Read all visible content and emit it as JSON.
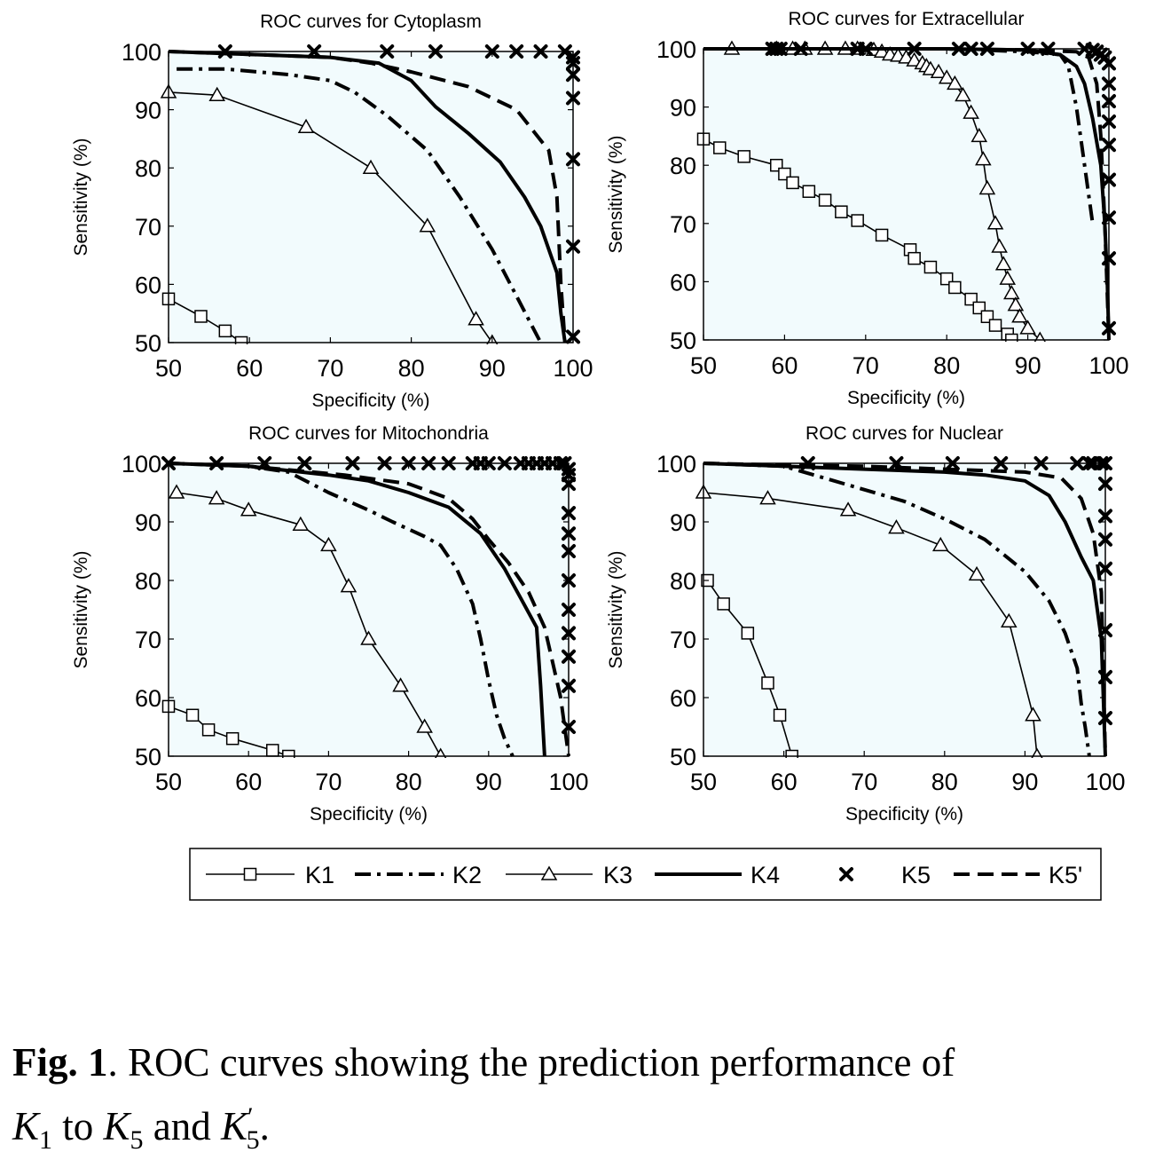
{
  "figure": {
    "caption": {
      "label": "Fig. 1",
      "text_1": ". ROC curves showing the prediction performance of",
      "k1_base": "K",
      "k1_sub": "1",
      "to": " to ",
      "k5_base": "K",
      "k5_sub": "5",
      "and": " and ",
      "k5p_base": "K",
      "k5p_sub": "5",
      "k5p_sup": "′",
      "end": "."
    }
  },
  "chart_data": [
    {
      "type": "line",
      "title": "ROC curves for Cytoplasm",
      "xlabel": "Specificity (%)",
      "ylabel": "Sensitivity (%)",
      "xlim": [
        50,
        100
      ],
      "ylim": [
        50,
        100
      ],
      "xticks": [
        50,
        60,
        70,
        80,
        90,
        100
      ],
      "yticks": [
        50,
        60,
        70,
        80,
        90,
        100
      ],
      "series": [
        {
          "name": "K1",
          "x": [
            50,
            54,
            57,
            59
          ],
          "y": [
            57.5,
            54.5,
            52,
            50
          ]
        },
        {
          "name": "K2",
          "x": [
            51,
            57,
            65,
            70,
            73,
            77,
            82,
            86,
            90,
            93,
            96
          ],
          "y": [
            97,
            97,
            96,
            95,
            93,
            89,
            83,
            75,
            66,
            58,
            50
          ]
        },
        {
          "name": "K3",
          "x": [
            50,
            56,
            67,
            75,
            82,
            88,
            90
          ],
          "y": [
            93,
            92.5,
            87,
            80,
            70,
            54,
            50
          ]
        },
        {
          "name": "K4",
          "x": [
            50,
            60,
            70,
            76,
            80,
            83,
            87,
            91,
            94,
            96,
            98,
            98.5,
            99
          ],
          "y": [
            100,
            99.5,
            99,
            98,
            95,
            90.5,
            86,
            81,
            75,
            70,
            62,
            55,
            50
          ]
        },
        {
          "name": "K5",
          "x": [
            57,
            68,
            77,
            83,
            90,
            93,
            96,
            99,
            100,
            100,
            100,
            100,
            100,
            100,
            100
          ],
          "y": [
            100,
            100,
            100,
            100,
            100,
            100,
            100,
            100,
            98,
            96,
            92,
            81.5,
            66.5,
            51,
            99
          ]
        },
        {
          "name": "K5'",
          "x": [
            50,
            60,
            70,
            75,
            80,
            87,
            93,
            97,
            98,
            98.5,
            99
          ],
          "y": [
            100,
            99.5,
            99,
            98,
            96.5,
            94,
            90,
            83,
            75,
            60,
            50
          ]
        }
      ]
    },
    {
      "type": "line",
      "title": "ROC curves for Extracellular",
      "xlabel": "Specificity (%)",
      "ylabel": "Sensitivity (%)",
      "xlim": [
        50,
        100
      ],
      "ylim": [
        50,
        100
      ],
      "xticks": [
        50,
        60,
        70,
        80,
        90,
        100
      ],
      "yticks": [
        50,
        60,
        70,
        80,
        90,
        100
      ],
      "series": [
        {
          "name": "K1",
          "x": [
            50,
            52,
            55,
            59,
            60,
            61,
            63,
            65,
            67,
            69,
            72,
            75.5,
            76,
            78,
            80,
            81,
            83,
            84,
            85,
            86,
            87.5,
            88
          ],
          "y": [
            84.5,
            83,
            81.5,
            80,
            78.5,
            77,
            75.5,
            74,
            72,
            70.5,
            68,
            65.5,
            64,
            62.5,
            60.5,
            59,
            57,
            55.5,
            54,
            52.5,
            51,
            50
          ]
        },
        {
          "name": "K2",
          "x": [
            50,
            60,
            70,
            80,
            90,
            94,
            95,
            96,
            97,
            98
          ],
          "y": [
            100,
            100,
            100,
            100,
            99.5,
            99,
            97,
            90,
            80,
            70
          ]
        },
        {
          "name": "K3",
          "x": [
            53.5,
            59,
            61,
            62.5,
            65,
            67.5,
            69,
            71,
            72,
            73,
            74,
            75,
            76,
            77,
            77.5,
            78,
            79,
            80,
            81,
            82,
            83,
            84,
            84.5,
            85,
            86,
            86.5,
            87,
            87.5,
            88,
            88.5,
            89,
            90,
            91.5
          ],
          "y": [
            100,
            100,
            100,
            100,
            100,
            100,
            100,
            99.8,
            99.5,
            99,
            98.8,
            98.5,
            98,
            97.5,
            97,
            96.5,
            96,
            95,
            94,
            92,
            89,
            85,
            81,
            76,
            70,
            66,
            63,
            60.5,
            58,
            56,
            54,
            52,
            50
          ]
        },
        {
          "name": "K4",
          "x": [
            50,
            60,
            70,
            80,
            90,
            94,
            96,
            97,
            98,
            99,
            99.5,
            99.8,
            100
          ],
          "y": [
            100,
            100,
            100,
            100,
            99.8,
            99,
            97,
            94,
            88,
            80,
            70,
            60,
            50
          ]
        },
        {
          "name": "K5",
          "x": [
            58.5,
            59,
            59.5,
            62,
            69,
            70,
            76,
            81.5,
            83,
            85,
            90,
            92.5,
            97,
            98,
            98.5,
            99,
            99.5,
            100,
            100,
            100,
            100,
            100,
            100,
            100,
            100,
            100
          ],
          "y": [
            100,
            100,
            100,
            100,
            100,
            100,
            100,
            100,
            100,
            100,
            100,
            100,
            100,
            99.8,
            99.5,
            99,
            98.5,
            97.5,
            94,
            91,
            87.5,
            83.5,
            77.5,
            71,
            64,
            52
          ]
        },
        {
          "name": "K5'",
          "x": [
            50,
            60,
            70,
            80,
            90,
            96,
            97.5,
            98.5,
            99,
            99.5,
            100
          ],
          "y": [
            100,
            100,
            100,
            100,
            99.8,
            99.5,
            98.5,
            94,
            85,
            70,
            50
          ]
        }
      ]
    },
    {
      "type": "line",
      "title": "ROC curves for Mitochondria",
      "xlabel": "Specificity (%)",
      "ylabel": "Sensitivity (%)",
      "xlim": [
        50,
        100
      ],
      "ylim": [
        50,
        100
      ],
      "xticks": [
        50,
        60,
        70,
        80,
        90,
        100
      ],
      "yticks": [
        50,
        60,
        70,
        80,
        90,
        100
      ],
      "series": [
        {
          "name": "K1",
          "x": [
            50,
            53,
            55,
            58,
            63,
            65
          ],
          "y": [
            58.5,
            57,
            54.5,
            53,
            51,
            50
          ]
        },
        {
          "name": "K2",
          "x": [
            50,
            60,
            65,
            70,
            75,
            78,
            82,
            84,
            86,
            88,
            89,
            90,
            91,
            92,
            93
          ],
          "y": [
            100,
            99.5,
            98.5,
            95,
            92,
            90,
            87.5,
            86,
            82,
            76,
            70,
            63,
            57,
            53,
            50
          ]
        },
        {
          "name": "K3",
          "x": [
            51,
            56,
            60,
            66.5,
            70,
            72.5,
            75,
            79,
            82,
            84
          ],
          "y": [
            95,
            94,
            92,
            89.5,
            86,
            79,
            70,
            62,
            55,
            50
          ]
        },
        {
          "name": "K4",
          "x": [
            50,
            60,
            70,
            75,
            80,
            85,
            89,
            92,
            94,
            96,
            96.5,
            97
          ],
          "y": [
            100,
            99.5,
            98,
            97,
            95,
            92.5,
            88,
            82,
            77,
            72,
            62,
            50
          ]
        },
        {
          "name": "K5",
          "x": [
            50,
            56,
            62,
            67,
            73,
            77,
            80,
            82.5,
            85,
            88,
            89,
            90,
            92,
            94,
            95,
            96,
            97,
            98,
            99,
            99.5,
            100,
            100,
            100,
            100,
            100,
            100,
            100,
            100,
            100,
            100,
            100,
            100
          ],
          "y": [
            100,
            100,
            100,
            100,
            100,
            100,
            100,
            100,
            100,
            100,
            100,
            100,
            100,
            100,
            100,
            100,
            100,
            100,
            100,
            100,
            99,
            98,
            96.5,
            91.5,
            88,
            85,
            80,
            75,
            71,
            67,
            62,
            55
          ]
        },
        {
          "name": "K5'",
          "x": [
            50,
            60,
            68,
            72,
            80,
            85,
            88,
            90,
            92.5,
            95,
            97,
            98,
            99,
            99.5,
            100
          ],
          "y": [
            100,
            99.5,
            98.5,
            98,
            96.5,
            94,
            90.5,
            87,
            83,
            78,
            72,
            66,
            60,
            55,
            50
          ]
        }
      ]
    },
    {
      "type": "line",
      "title": "ROC curves for Nuclear",
      "xlabel": "Specificity (%)",
      "ylabel": "Sensitivity (%)",
      "xlim": [
        50,
        100
      ],
      "ylim": [
        50,
        100
      ],
      "xticks": [
        50,
        60,
        70,
        80,
        90,
        100
      ],
      "yticks": [
        50,
        60,
        70,
        80,
        90,
        100
      ],
      "series": [
        {
          "name": "K1",
          "x": [
            50.5,
            52.5,
            55.5,
            58,
            59.5,
            61
          ],
          "y": [
            80,
            76,
            71,
            62.5,
            57,
            50
          ]
        },
        {
          "name": "K2",
          "x": [
            50,
            60,
            65,
            70,
            75,
            80,
            85,
            90,
            93,
            95,
            96.5,
            97,
            97.5,
            98
          ],
          "y": [
            100,
            99.5,
            97.5,
            95.5,
            93.5,
            90.5,
            87,
            81.5,
            76.5,
            71,
            65,
            59,
            55,
            50
          ]
        },
        {
          "name": "K3",
          "x": [
            50,
            58,
            68,
            74,
            79.5,
            84,
            88,
            91,
            91.5
          ],
          "y": [
            95,
            94,
            92,
            89,
            86,
            81,
            73,
            57,
            50
          ]
        },
        {
          "name": "K4",
          "x": [
            50,
            60,
            70,
            80,
            85,
            90,
            93,
            95,
            97,
            98.5,
            99.5,
            100
          ],
          "y": [
            100,
            99.5,
            99,
            98.5,
            98,
            97,
            94.5,
            90,
            84,
            80,
            70,
            50
          ]
        },
        {
          "name": "K5",
          "x": [
            63,
            74,
            81,
            87,
            92,
            96.5,
            98,
            98.5,
            99.5,
            100,
            100,
            100,
            100,
            100,
            100,
            100,
            100
          ],
          "y": [
            100,
            100,
            100,
            100,
            100,
            100,
            100,
            100,
            100,
            100,
            96.5,
            91,
            87,
            82,
            71.5,
            63.5,
            56.5
          ]
        },
        {
          "name": "K5'",
          "x": [
            50,
            60,
            70,
            80,
            90,
            94.5,
            97,
            98.5,
            99.5,
            100
          ],
          "y": [
            100,
            99.7,
            99.5,
            99,
            98.5,
            97.5,
            94,
            88,
            78,
            50
          ]
        }
      ]
    }
  ],
  "legend": {
    "entries": [
      "K1",
      "K2",
      "K3",
      "K4",
      "K5",
      "K5'"
    ]
  }
}
